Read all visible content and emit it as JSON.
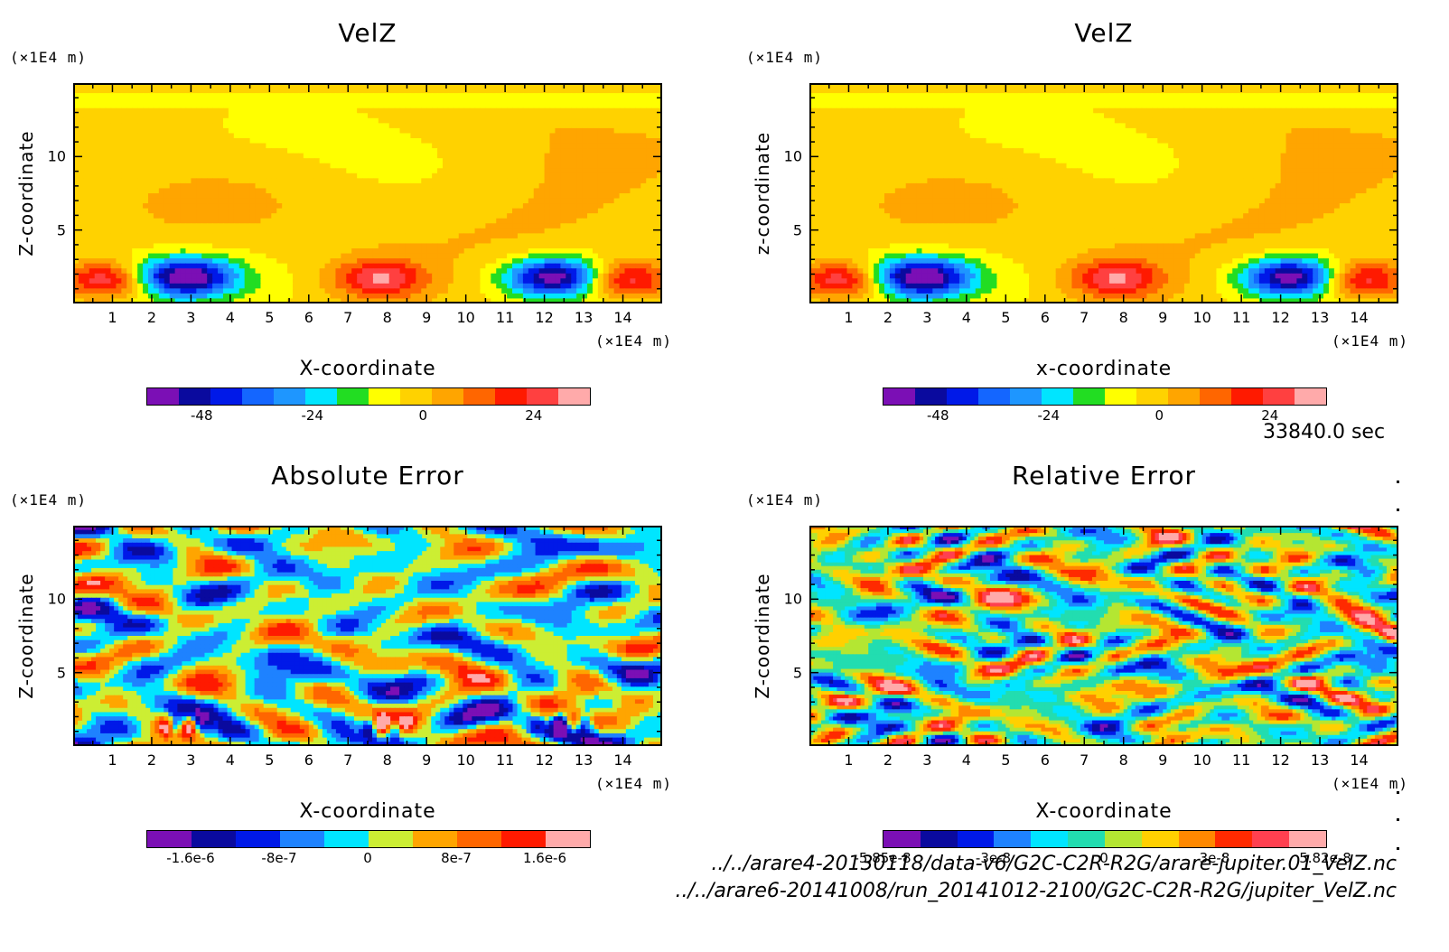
{
  "colors": {
    "velz_levels": [
      "#7B0FB5",
      "#0A0A9E",
      "#0019E8",
      "#1466FF",
      "#1E96FF",
      "#00E5FF",
      "#22DD22",
      "#FFFF00",
      "#FFD200",
      "#FFA500",
      "#FF6600",
      "#FF1A00",
      "#FF4040",
      "#FFAAAA"
    ],
    "abs_levels": [
      "#7B0FB5",
      "#0A0A9E",
      "#0019E8",
      "#1E82FF",
      "#00E5FF",
      "#CCEE33",
      "#FFA500",
      "#FF6600",
      "#FF1A00",
      "#FFAAAA"
    ],
    "rel_levels": [
      "#7B0FB5",
      "#0A0A9E",
      "#0019E8",
      "#1E82FF",
      "#00E5FF",
      "#22DDB0",
      "#B4E632",
      "#FFD000",
      "#FF8800",
      "#FF2A00",
      "#FF4050",
      "#FFAAAA"
    ]
  },
  "panels": [
    {
      "id": "velz-1",
      "title": "VelZ",
      "yunit": "(×1E4 m)",
      "xunit": "(×1E4 m)",
      "ylabel": "Z-coordinate",
      "xlabel": "X-coordinate",
      "cbar_ticks": [
        "-48",
        "-24",
        "0",
        "24"
      ]
    },
    {
      "id": "velz-2",
      "title": "VelZ",
      "yunit": "(×1E4 m)",
      "xunit": "(×1E4 m)",
      "ylabel": "z-coordinate",
      "xlabel": "x-coordinate",
      "cbar_ticks": [
        "-48",
        "-24",
        "0",
        "24"
      ]
    },
    {
      "id": "abs-error",
      "title": "Absolute Error",
      "yunit": "(×1E4 m)",
      "xunit": "(×1E4 m)",
      "ylabel": "Z-coordinate",
      "xlabel": "X-coordinate",
      "cbar_ticks": [
        "-1.6e-6",
        "-8e-7",
        "0",
        "8e-7",
        "1.6e-6"
      ]
    },
    {
      "id": "rel-error",
      "title": "Relative Error",
      "yunit": "(×1E4 m)",
      "xunit": "(×1E4 m)",
      "ylabel": "Z-coordinate",
      "xlabel": "X-coordinate",
      "cbar_ticks": [
        "-5.85e-8",
        "-3e-8",
        "0",
        "3e-8",
        "5.82e-8"
      ]
    }
  ],
  "time_label": "33840.0 sec",
  "files": [
    "../../arare4-20130118/data-v6/G2C-C2R-R2G/arare-jupiter.01_VelZ.nc",
    "../../arare6-20141008/run_20141012-2100/G2C-C2R-R2G/jupiter_VelZ.nc"
  ],
  "chart_data": [
    {
      "type": "heatmap",
      "title": "VelZ",
      "xlabel": "X-coordinate",
      "ylabel": "Z-coordinate",
      "xlim": [
        0,
        15
      ],
      "ylim": [
        0,
        15
      ],
      "xticks": [
        1,
        2,
        3,
        4,
        5,
        6,
        7,
        8,
        9,
        10,
        11,
        12,
        13,
        14
      ],
      "yticks": [
        5,
        10
      ],
      "colorbar_ticks": [
        -48,
        -24,
        0,
        24
      ],
      "colorbar_range": [
        -60,
        36
      ],
      "features": [
        {
          "kind": "max",
          "x": 0.9,
          "z": 1.6,
          "value": 36
        },
        {
          "kind": "min",
          "x": 2.8,
          "z": 1.8,
          "value": -56
        },
        {
          "kind": "max",
          "x": 7.8,
          "z": 1.7,
          "value": 30
        },
        {
          "kind": "min",
          "x": 12.3,
          "z": 1.8,
          "value": -56
        },
        {
          "kind": "max",
          "x": 14.0,
          "z": 1.6,
          "value": 36
        }
      ]
    },
    {
      "type": "heatmap",
      "title": "VelZ",
      "xlabel": "x-coordinate",
      "ylabel": "z-coordinate",
      "xlim": [
        0,
        15
      ],
      "ylim": [
        0,
        15
      ],
      "xticks": [
        1,
        2,
        3,
        4,
        5,
        6,
        7,
        8,
        9,
        10,
        11,
        12,
        13,
        14
      ],
      "yticks": [
        5,
        10
      ],
      "colorbar_ticks": [
        -48,
        -24,
        0,
        24
      ],
      "colorbar_range": [
        -60,
        36
      ],
      "features": [
        {
          "kind": "max",
          "x": 0.9,
          "z": 1.6,
          "value": 36
        },
        {
          "kind": "min",
          "x": 2.8,
          "z": 1.8,
          "value": -56
        },
        {
          "kind": "max",
          "x": 7.8,
          "z": 1.7,
          "value": 30
        },
        {
          "kind": "min",
          "x": 12.3,
          "z": 1.8,
          "value": -56
        },
        {
          "kind": "max",
          "x": 14.0,
          "z": 1.6,
          "value": 36
        }
      ]
    },
    {
      "type": "heatmap",
      "title": "Absolute Error",
      "xlabel": "X-coordinate",
      "ylabel": "Z-coordinate",
      "xlim": [
        0,
        15
      ],
      "ylim": [
        0,
        15
      ],
      "xticks": [
        1,
        2,
        3,
        4,
        5,
        6,
        7,
        8,
        9,
        10,
        11,
        12,
        13,
        14
      ],
      "yticks": [
        5,
        10
      ],
      "colorbar_ticks": [
        -1.6e-06,
        -8e-07,
        0,
        8e-07,
        1.6e-06
      ]
    },
    {
      "type": "heatmap",
      "title": "Relative Error",
      "xlabel": "X-coordinate",
      "ylabel": "Z-coordinate",
      "xlim": [
        0,
        15
      ],
      "ylim": [
        0,
        15
      ],
      "xticks": [
        1,
        2,
        3,
        4,
        5,
        6,
        7,
        8,
        9,
        10,
        11,
        12,
        13,
        14
      ],
      "yticks": [
        5,
        10
      ],
      "colorbar_ticks": [
        -5.85e-08,
        -3e-08,
        0,
        3e-08,
        5.82e-08
      ]
    }
  ]
}
